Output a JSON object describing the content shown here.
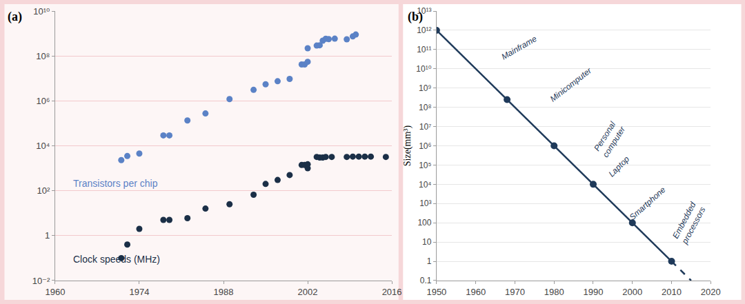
{
  "chart_data": [
    {
      "type": "scatter",
      "title": "(a)",
      "log": "y",
      "grid": true,
      "xlim": [
        1960,
        2016
      ],
      "xticks": [
        1960,
        1974,
        1988,
        2002,
        2016
      ],
      "ylim": [
        0.01,
        10000000000
      ],
      "yticks": [
        {
          "value": 0.01,
          "label": "10⁻²"
        },
        1,
        {
          "value": 100,
          "label": "10²"
        },
        {
          "value": 10000,
          "label": "10⁴"
        },
        {
          "value": 1000000,
          "label": "10⁶"
        },
        {
          "value": 100000000,
          "label": "10⁸"
        },
        {
          "value": 10000000000,
          "label": "10¹⁰"
        }
      ],
      "series": [
        {
          "name": "Transistors per chip",
          "color": "#5b82c6",
          "marker": "circle",
          "x": [
            1971,
            1972,
            1974,
            1978,
            1979,
            1982,
            1985,
            1989,
            1993,
            1995,
            1997,
            1999,
            2001,
            2001.5,
            2002,
            2002,
            2003.5,
            2004,
            2004.5,
            2005,
            2005.5,
            2006.5,
            2008.5,
            2009.5,
            2010
          ],
          "values": [
            2300,
            3500,
            4500,
            29000,
            29000,
            134000,
            275000,
            1200000,
            3100000,
            5500000,
            7500000,
            9500000,
            42000000,
            42000000,
            55000000,
            220000000,
            290000000,
            300000000,
            480000000,
            580000000,
            560000000,
            590000000,
            550000000,
            740000000,
            900000000
          ]
        },
        {
          "name": "Clock speeds (MHz)",
          "color": "#1b2f47",
          "marker": "circle",
          "x": [
            1971,
            1972,
            1974,
            1978,
            1979,
            1982,
            1985,
            1989,
            1993,
            1995,
            1997,
            1999,
            2001,
            2001.5,
            2002,
            2002,
            2003.5,
            2004,
            2004.5,
            2005,
            2006,
            2008.5,
            2009.5,
            2010.5,
            2011.5,
            2012.5,
            2015
          ],
          "values": [
            0.1,
            0.4,
            2,
            5,
            5,
            6,
            16,
            25,
            66,
            200,
            300,
            500,
            1400,
            1400,
            1500,
            1000,
            3200,
            3000,
            3000,
            3200,
            3200,
            3200,
            3300,
            3300,
            3300,
            3300,
            3200
          ]
        }
      ]
    },
    {
      "type": "line",
      "title": "(b)",
      "log": "y",
      "grid": true,
      "ylabel": "Size(mm³)",
      "xlim": [
        1950,
        2020
      ],
      "xticks": [
        1950,
        1960,
        1970,
        1980,
        1990,
        2000,
        2010,
        2020
      ],
      "ylim": [
        0.1,
        10000000000000
      ],
      "yticks": [
        0.1,
        1,
        10,
        100,
        {
          "value": 1000,
          "label": "10³"
        },
        {
          "value": 10000,
          "label": "10⁴"
        },
        {
          "value": 100000,
          "label": "10⁵"
        },
        {
          "value": 1000000,
          "label": "10⁶"
        },
        {
          "value": 10000000,
          "label": "10⁷"
        },
        {
          "value": 100000000,
          "label": "10⁸"
        },
        {
          "value": 1000000000,
          "label": "10⁹"
        },
        {
          "value": 10000000000,
          "label": "10¹⁰"
        },
        {
          "value": 100000000000,
          "label": "10¹¹"
        },
        {
          "value": 1000000000000,
          "label": "10¹²"
        },
        {
          "value": 10000000000000,
          "label": "10¹³"
        }
      ],
      "series": [
        {
          "color": "#1f3a5a",
          "marker": "circle",
          "line_style": "solid",
          "x": [
            1950,
            1968,
            1980,
            1990,
            2000,
            2010
          ],
          "values": [
            1000000000000,
            250000000,
            1000000,
            10000,
            100,
            1
          ],
          "point_labels": [
            "Mainframe",
            "Minicomputer",
            "Personal computer",
            "Laptop",
            "Smartphone",
            "Embedded processors"
          ]
        },
        {
          "color": "#1f3a5a",
          "line_style": "dash",
          "x": [
            2010,
            2015
          ],
          "values": [
            1,
            0.1
          ]
        }
      ]
    }
  ]
}
